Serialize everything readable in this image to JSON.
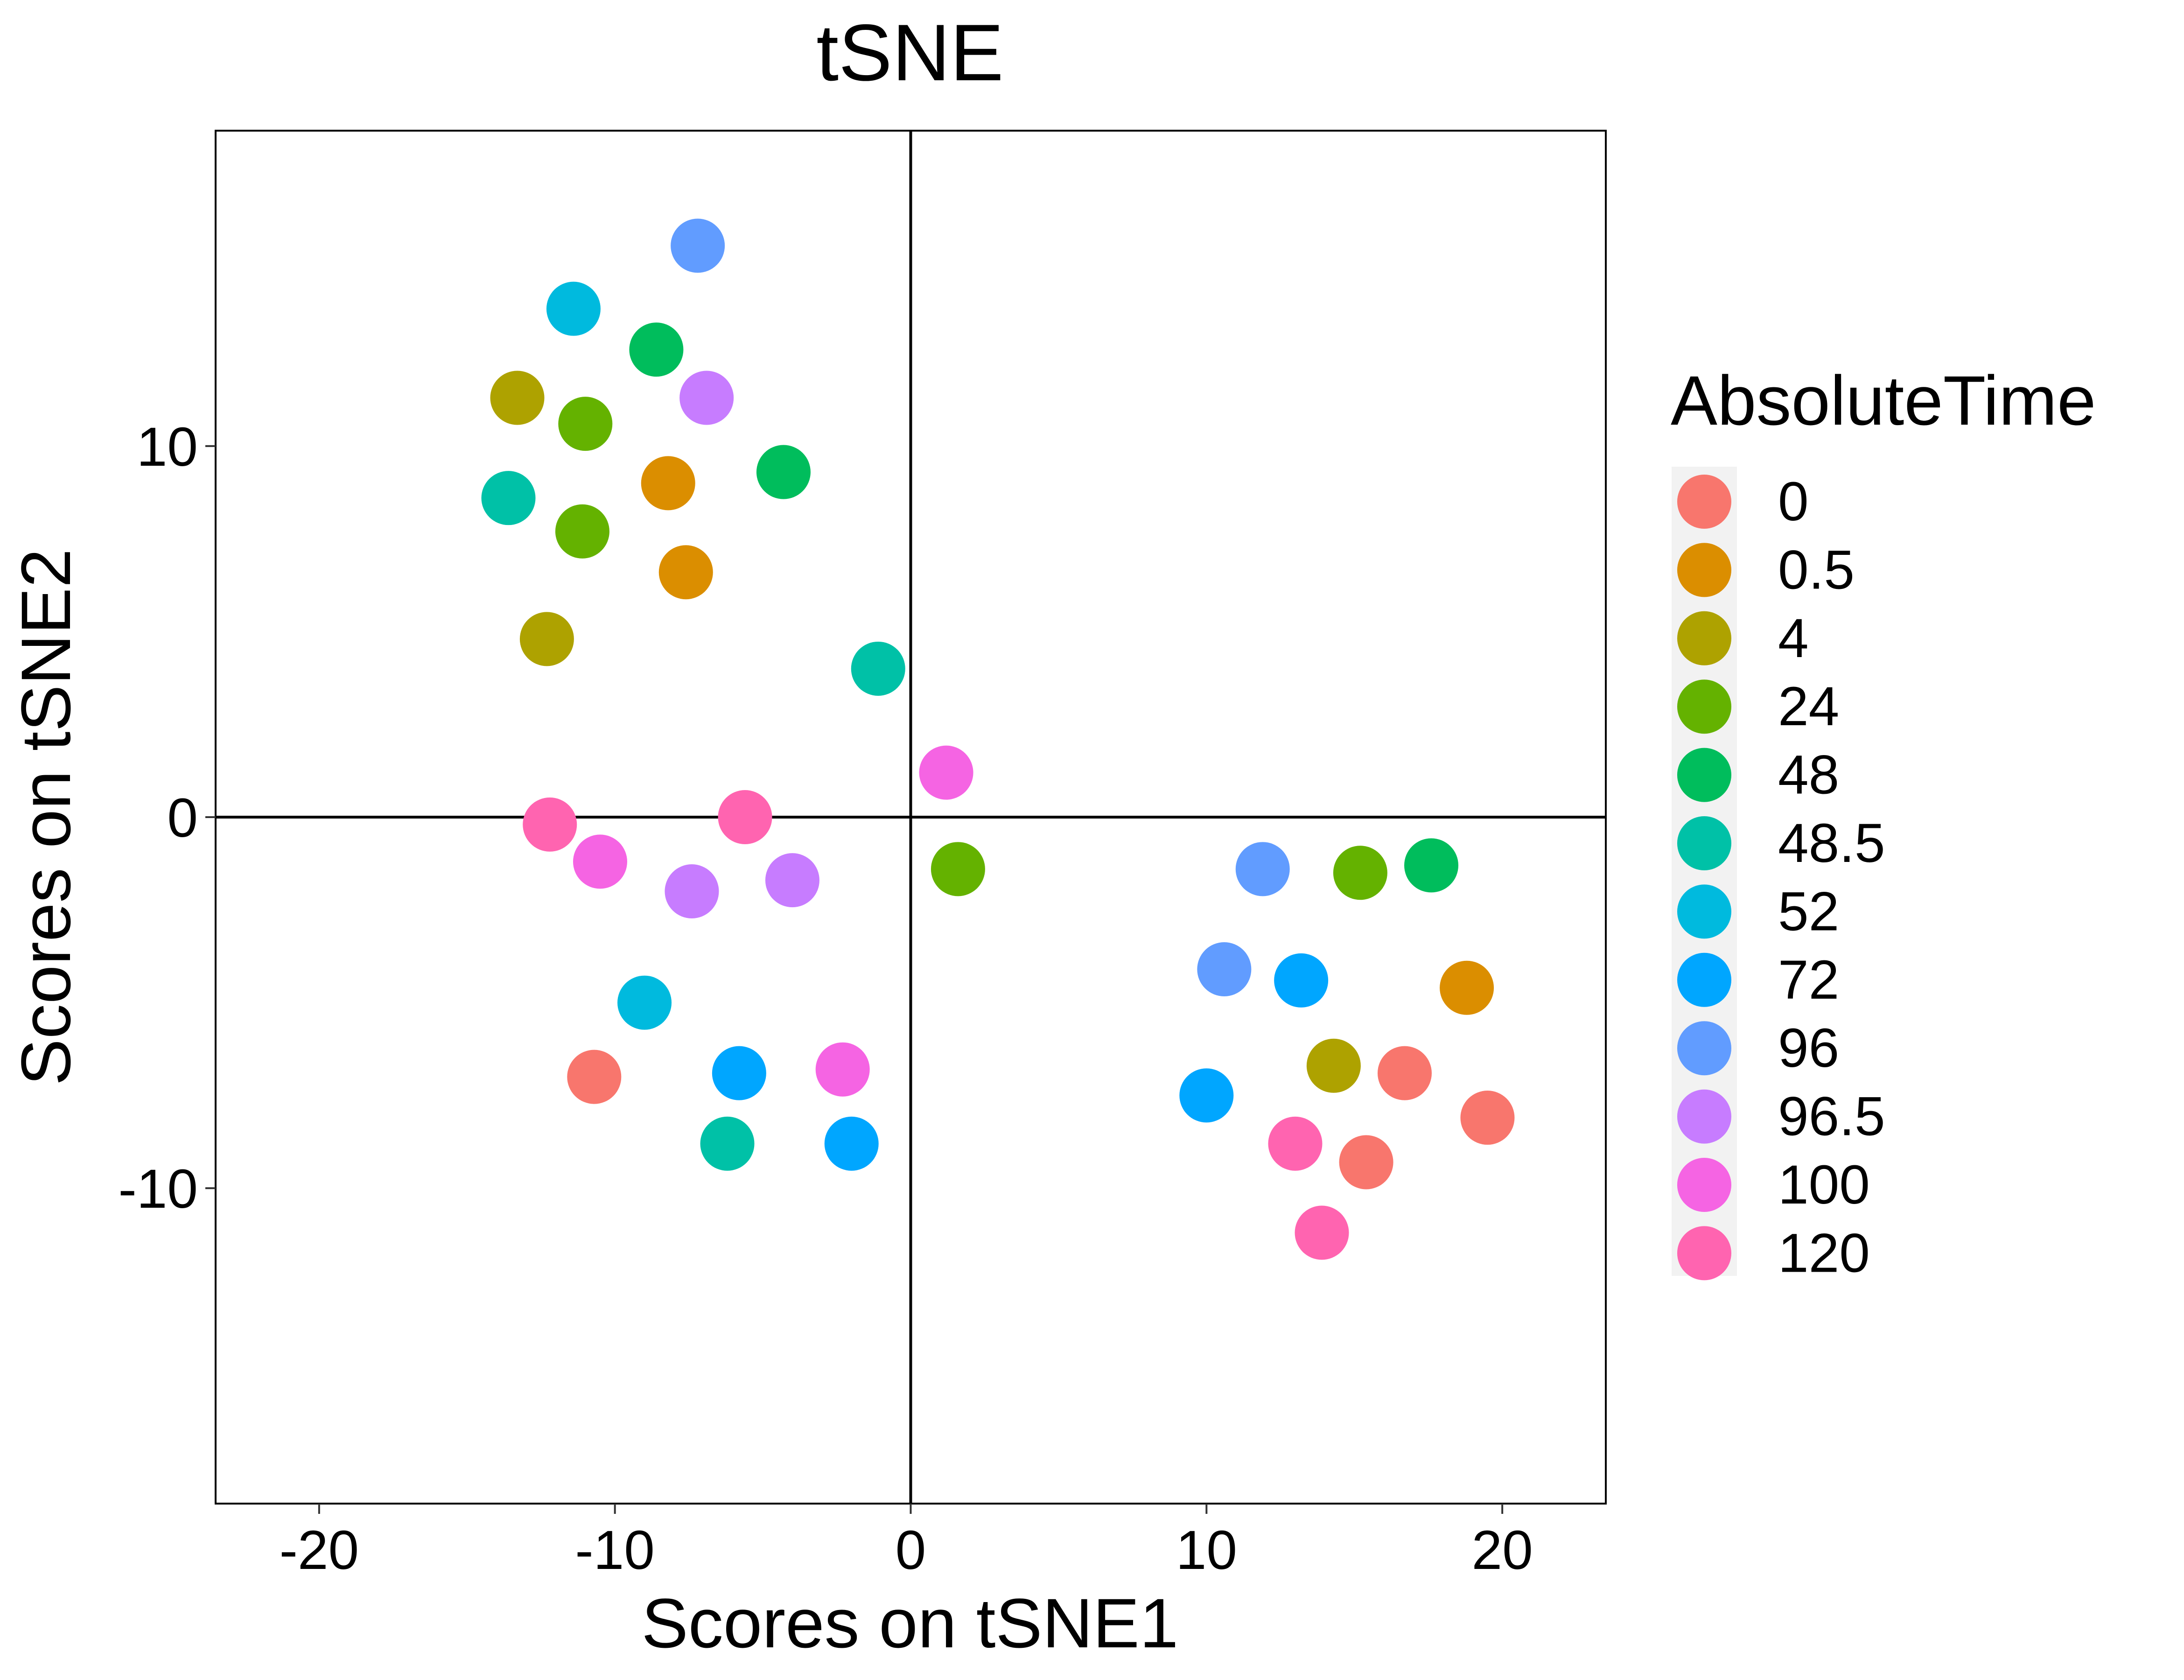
{
  "chart_data": {
    "type": "scatter",
    "title": "tSNE",
    "xlabel": "Scores on tSNE1",
    "ylabel": "Scores on tSNE2",
    "xlim": [
      -23.5,
      23.5
    ],
    "ylim": [
      -18.5,
      18.5
    ],
    "xticks": [
      -20,
      -10,
      0,
      10,
      20
    ],
    "yticks": [
      -10,
      0,
      10
    ],
    "xtick_labels": [
      "-20",
      "-10",
      "0",
      "10",
      "20"
    ],
    "ytick_labels": [
      "-10",
      "0",
      "10"
    ],
    "reference_lines": {
      "x": 0,
      "y": 0
    },
    "grid": false,
    "legend": {
      "title": "AbsoluteTime",
      "position": "right",
      "entries": [
        {
          "label": "0",
          "color": "#F8766D"
        },
        {
          "label": "0.5",
          "color": "#DB8E00"
        },
        {
          "label": "4",
          "color": "#AEA200"
        },
        {
          "label": "24",
          "color": "#64B200"
        },
        {
          "label": "48",
          "color": "#00BD5C"
        },
        {
          "label": "48.5",
          "color": "#00C1A7"
        },
        {
          "label": "52",
          "color": "#00BADE"
        },
        {
          "label": "72",
          "color": "#00A6FF"
        },
        {
          "label": "96",
          "color": "#619CFF"
        },
        {
          "label": "96.5",
          "color": "#C77CFF"
        },
        {
          "label": "100",
          "color": "#F564E3"
        },
        {
          "label": "120",
          "color": "#FF64B0"
        }
      ]
    },
    "series": [
      {
        "name": "0",
        "points": [
          [
            -10.7,
            -7.0
          ],
          [
            16.7,
            -6.9
          ],
          [
            19.5,
            -8.1
          ],
          [
            15.4,
            -9.3
          ]
        ]
      },
      {
        "name": "0.5",
        "points": [
          [
            -8.2,
            9.0
          ],
          [
            -7.6,
            6.6
          ],
          [
            18.8,
            -4.6
          ]
        ]
      },
      {
        "name": "4",
        "points": [
          [
            -13.3,
            11.3
          ],
          [
            -12.3,
            4.8
          ],
          [
            14.3,
            -6.7
          ]
        ]
      },
      {
        "name": "24",
        "points": [
          [
            -11.0,
            10.6
          ],
          [
            -11.1,
            7.7
          ],
          [
            1.6,
            -1.4
          ],
          [
            15.2,
            -1.5
          ]
        ]
      },
      {
        "name": "48",
        "points": [
          [
            -8.6,
            12.6
          ],
          [
            -4.3,
            9.3
          ],
          [
            17.6,
            -1.3
          ]
        ]
      },
      {
        "name": "48.5",
        "points": [
          [
            -13.6,
            8.6
          ],
          [
            -1.1,
            4.0
          ],
          [
            -6.2,
            -8.8
          ]
        ]
      },
      {
        "name": "52",
        "points": [
          [
            -11.4,
            13.7
          ],
          [
            -9.0,
            -5.0
          ]
        ]
      },
      {
        "name": "72",
        "points": [
          [
            -5.8,
            -6.9
          ],
          [
            -2.0,
            -8.8
          ],
          [
            13.2,
            -4.4
          ],
          [
            10.0,
            -7.5
          ]
        ]
      },
      {
        "name": "96",
        "points": [
          [
            -7.2,
            15.4
          ],
          [
            11.9,
            -1.4
          ],
          [
            10.6,
            -4.1
          ]
        ]
      },
      {
        "name": "96.5",
        "points": [
          [
            -6.9,
            11.3
          ],
          [
            -7.4,
            -2.0
          ],
          [
            -4.0,
            -1.7
          ]
        ]
      },
      {
        "name": "100",
        "points": [
          [
            1.2,
            1.2
          ],
          [
            -10.5,
            -1.2
          ],
          [
            -2.3,
            -6.8
          ]
        ]
      },
      {
        "name": "120",
        "points": [
          [
            -12.2,
            -0.2
          ],
          [
            -5.6,
            0.0
          ],
          [
            13.0,
            -8.8
          ],
          [
            13.9,
            -11.2
          ]
        ]
      }
    ]
  }
}
